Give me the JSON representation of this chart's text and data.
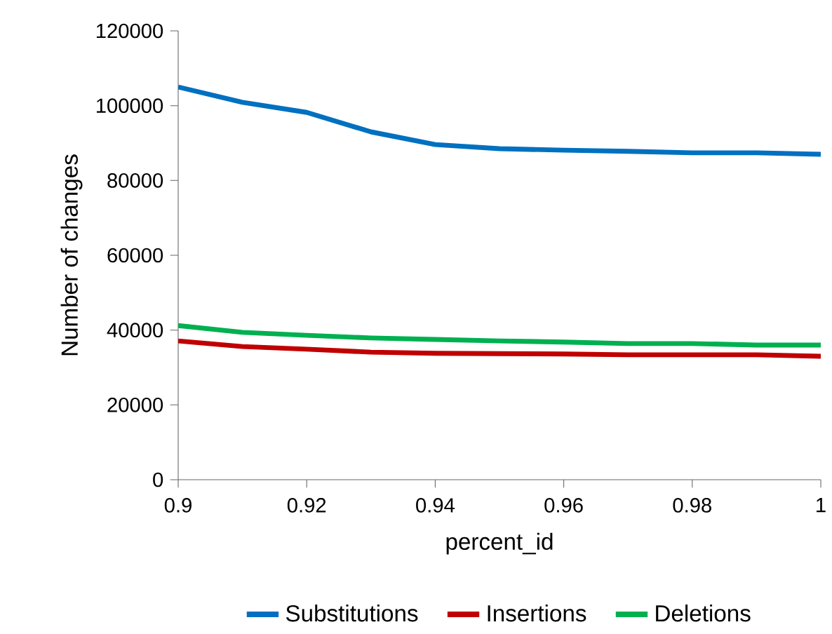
{
  "chart_data": {
    "type": "line",
    "xlabel": "percent_id",
    "ylabel": "Number of changes",
    "x": [
      0.9,
      0.91,
      0.92,
      0.93,
      0.94,
      0.95,
      0.96,
      0.97,
      0.98,
      0.99,
      1
    ],
    "series": [
      {
        "name": "Substitutions",
        "color": "#0070c0",
        "values": [
          105000,
          100900,
          98200,
          93000,
          89600,
          88500,
          88100,
          87800,
          87400,
          87400,
          87000
        ]
      },
      {
        "name": "Insertions",
        "color": "#c00000",
        "values": [
          37100,
          35600,
          34900,
          34100,
          33800,
          33700,
          33600,
          33400,
          33400,
          33400,
          33000
        ]
      },
      {
        "name": "Deletions",
        "color": "#00b050",
        "values": [
          41200,
          39400,
          38600,
          37900,
          37500,
          37100,
          36800,
          36400,
          36400,
          36000,
          36000
        ]
      }
    ],
    "xlim": [
      0.9,
      1
    ],
    "ylim": [
      0,
      120000
    ],
    "xticks": [
      0.9,
      0.92,
      0.94,
      0.96,
      0.98,
      1
    ],
    "yticks": [
      0,
      20000,
      40000,
      60000,
      80000,
      100000,
      120000
    ],
    "grid": false,
    "legend": "bottom",
    "marker": "none",
    "line_style": "solid"
  }
}
